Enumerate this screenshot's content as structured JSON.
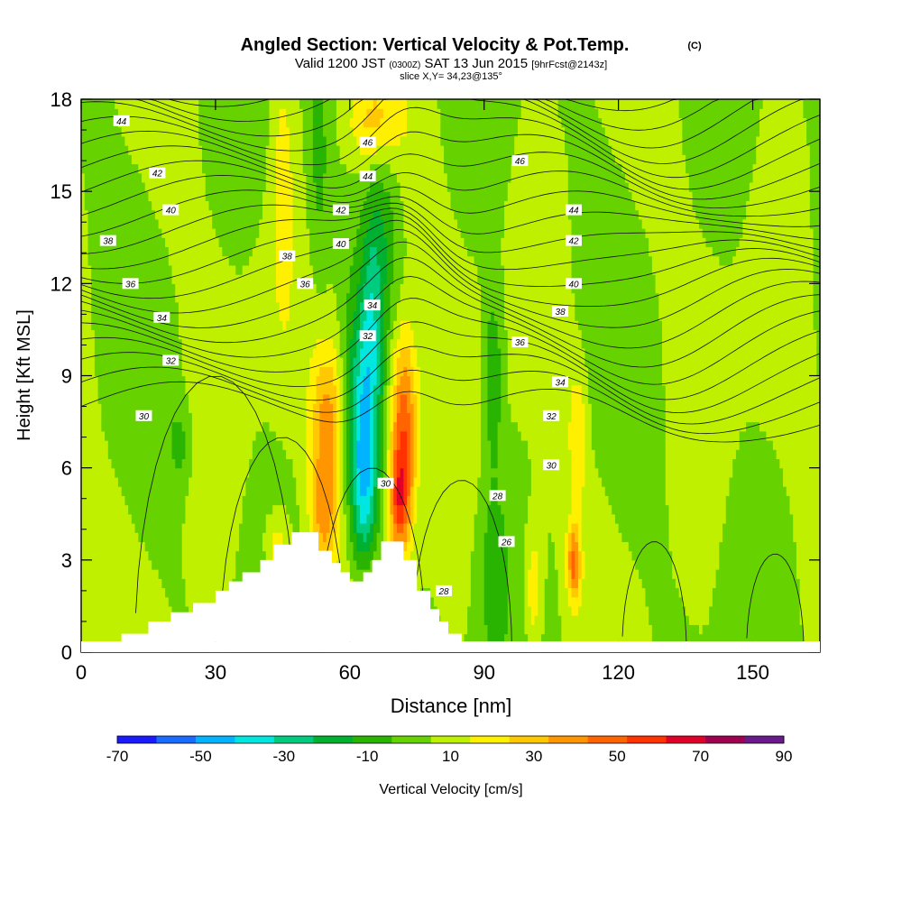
{
  "header": {
    "title": "Angled Section: Vertical Velocity & Pot.Temp.",
    "title_suffix": "(C)",
    "valid_prefix": "Valid 1200 JST",
    "valid_small": "(0300Z)",
    "valid_date": "SAT 13 Jun 2015",
    "fcst": "[9hrFcst@2143z]",
    "slice": "slice X,Y= 34,23@135°"
  },
  "chart_data": {
    "type": "heatmap",
    "xlabel": "Distance [nm]",
    "ylabel": "Height [Kft MSL]",
    "xlim": [
      0,
      165
    ],
    "ylim": [
      0,
      18
    ],
    "xticks": [
      0,
      30,
      60,
      90,
      120,
      150
    ],
    "yticks": [
      0,
      3,
      6,
      9,
      12,
      15,
      18
    ],
    "colorbar": {
      "label": "Vertical Velocity [cm/s]",
      "tick_labels": [
        "-70",
        "-50",
        "-30",
        "-10",
        "10",
        "30",
        "50",
        "70",
        "90"
      ],
      "bounds": [
        -70,
        -60,
        -50,
        -40,
        -30,
        -20,
        -10,
        0,
        10,
        20,
        30,
        40,
        50,
        60,
        70,
        80,
        90
      ],
      "colors": [
        "#1a1aff",
        "#1a6cff",
        "#00b4ff",
        "#00e6e0",
        "#00cc80",
        "#00b030",
        "#28b400",
        "#66d200",
        "#bff000",
        "#fff000",
        "#ffc800",
        "#ff9600",
        "#ff6400",
        "#ff3200",
        "#e00028",
        "#a00050",
        "#6a1a8a"
      ]
    },
    "background_w": 0,
    "updrafts": [
      {
        "x": 72,
        "y": 7.3,
        "sx": 2.2,
        "sy": 2.2,
        "w": 52
      },
      {
        "x": 71,
        "y": 4.8,
        "sx": 1.6,
        "sy": 1.2,
        "w": 40
      },
      {
        "x": 55,
        "y": 7.6,
        "sx": 2.5,
        "sy": 1.8,
        "w": 30
      },
      {
        "x": 54,
        "y": 4.5,
        "sx": 2.2,
        "sy": 1.4,
        "w": 28
      },
      {
        "x": 44,
        "y": 3.4,
        "sx": 2.0,
        "sy": 0.8,
        "w": 20
      },
      {
        "x": 110,
        "y": 2.9,
        "sx": 1.0,
        "sy": 0.9,
        "w": 40
      },
      {
        "x": 101,
        "y": 2.0,
        "sx": 1.5,
        "sy": 1.6,
        "w": 22
      },
      {
        "x": 65,
        "y": 17.2,
        "sx": 4.0,
        "sy": 1.0,
        "w": 22
      },
      {
        "x": 45,
        "y": 15.0,
        "sx": 1.5,
        "sy": 3.0,
        "w": 15
      },
      {
        "x": 111,
        "y": 7.2,
        "sx": 1.4,
        "sy": 1.5,
        "w": 18
      }
    ],
    "downdrafts": [
      {
        "x": 63,
        "y": 5.3,
        "sx": 2.2,
        "sy": 1.9,
        "w": -42
      },
      {
        "x": 63,
        "y": 8.5,
        "sx": 2.6,
        "sy": 2.3,
        "w": -30
      },
      {
        "x": 65,
        "y": 11.6,
        "sx": 1.7,
        "sy": 2.4,
        "w": -20
      },
      {
        "x": 68,
        "y": 14.0,
        "sx": 2.0,
        "sy": 2.0,
        "w": -12
      },
      {
        "x": 92,
        "y": 2.5,
        "sx": 2.0,
        "sy": 2.0,
        "w": -15
      },
      {
        "x": 53,
        "y": 16.0,
        "sx": 1.8,
        "sy": 3.0,
        "w": -14
      },
      {
        "x": 92,
        "y": 9.0,
        "sx": 1.5,
        "sy": 2.0,
        "w": -20
      },
      {
        "x": 22,
        "y": 6.8,
        "sx": 1.5,
        "sy": 0.8,
        "w": -14
      }
    ],
    "terrain": {
      "x": [
        9,
        15,
        20,
        25,
        30,
        33,
        36,
        40,
        43,
        47,
        50,
        53,
        56,
        58,
        60,
        63,
        65,
        67,
        68,
        70,
        72,
        75,
        78,
        80,
        82,
        85,
        87,
        90
      ],
      "h": [
        0.6,
        1.0,
        1.3,
        1.6,
        2.0,
        2.3,
        2.6,
        3.0,
        3.5,
        3.9,
        3.9,
        3.3,
        2.9,
        2.6,
        2.3,
        2.6,
        3.0,
        3.6,
        3.6,
        3.6,
        3.0,
        2.0,
        1.4,
        1.0,
        0.6,
        0.3,
        0,
        0
      ]
    },
    "contour_labels": [
      {
        "v": "44",
        "x": 9,
        "y": 17.3
      },
      {
        "v": "42",
        "x": 17,
        "y": 15.6
      },
      {
        "v": "40",
        "x": 20,
        "y": 14.4
      },
      {
        "v": "38",
        "x": 6,
        "y": 13.4
      },
      {
        "v": "36",
        "x": 11,
        "y": 12.0
      },
      {
        "v": "34",
        "x": 18,
        "y": 10.9
      },
      {
        "v": "32",
        "x": 20,
        "y": 9.5
      },
      {
        "v": "30",
        "x": 14,
        "y": 7.7
      },
      {
        "v": "46",
        "x": 64,
        "y": 16.6
      },
      {
        "v": "44",
        "x": 64,
        "y": 15.5
      },
      {
        "v": "42",
        "x": 58,
        "y": 14.4
      },
      {
        "v": "40",
        "x": 58,
        "y": 13.3
      },
      {
        "v": "38",
        "x": 46,
        "y": 12.9
      },
      {
        "v": "36",
        "x": 50,
        "y": 12.0
      },
      {
        "v": "34",
        "x": 65,
        "y": 11.3
      },
      {
        "v": "32",
        "x": 64,
        "y": 10.3
      },
      {
        "v": "30",
        "x": 68,
        "y": 5.5
      },
      {
        "v": "46",
        "x": 98,
        "y": 16.0
      },
      {
        "v": "44",
        "x": 110,
        "y": 14.4
      },
      {
        "v": "42",
        "x": 110,
        "y": 13.4
      },
      {
        "v": "40",
        "x": 110,
        "y": 12.0
      },
      {
        "v": "38",
        "x": 107,
        "y": 11.1
      },
      {
        "v": "36",
        "x": 98,
        "y": 10.1
      },
      {
        "v": "34",
        "x": 107,
        "y": 8.8
      },
      {
        "v": "32",
        "x": 105,
        "y": 7.7
      },
      {
        "v": "30",
        "x": 105,
        "y": 6.1
      },
      {
        "v": "28",
        "x": 93,
        "y": 5.1
      },
      {
        "v": "26",
        "x": 95,
        "y": 3.6
      },
      {
        "v": "28",
        "x": 81,
        "y": 2.0
      }
    ]
  }
}
